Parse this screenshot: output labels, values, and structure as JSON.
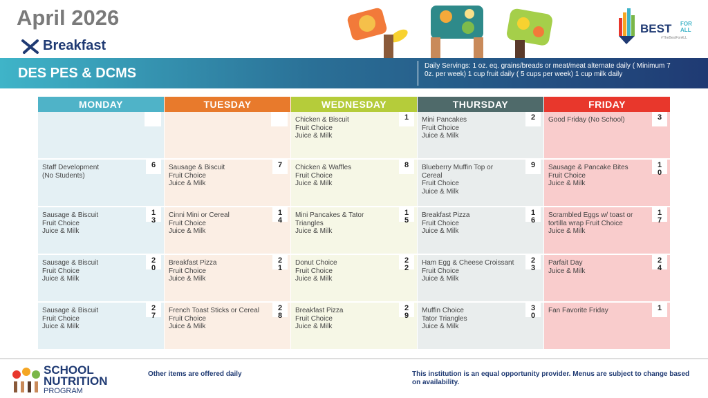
{
  "header": {
    "month": "April 2026",
    "meal": "Breakfast",
    "schools": "DES PES & DCMS",
    "servings": "Daily Servings: 1 oz. eq. grains/breads or meat/meat alternate daily ( Minimum 7 0z. per week)    1 cup fruit daily ( 5 cups per week)     1 cup milk daily",
    "logo": [
      "BEST",
      "FOR",
      "ALL"
    ],
    "logo_tag": "#TheBestForALL"
  },
  "days": [
    "MONDAY",
    "TUESDAY",
    "WEDNESDAY",
    "THURSDAY",
    "FRIDAY"
  ],
  "weeks": [
    [
      null,
      null,
      {
        "date": 1,
        "lines": [
          "Chicken & Biscuit",
          "Fruit Choice",
          "Juice & Milk"
        ]
      },
      {
        "date": 2,
        "lines": [
          "Mini Pancakes",
          "Fruit Choice",
          "Juice & Milk"
        ]
      },
      {
        "date": 3,
        "lines": [
          "Good Friday (No School)"
        ]
      }
    ],
    [
      {
        "date": 6,
        "lines": [
          "Staff Development",
          "(No Students)"
        ]
      },
      {
        "date": 7,
        "lines": [
          "Sausage & Biscuit",
          "Fruit Choice",
          "Juice & Milk"
        ]
      },
      {
        "date": 8,
        "lines": [
          "Chicken & Waffles",
          "Fruit Choice",
          "Juice & Milk"
        ]
      },
      {
        "date": 9,
        "lines": [
          "Blueberry Muffin Top  or",
          "Cereal",
          "Fruit Choice",
          "Juice & Milk"
        ]
      },
      {
        "date": 10,
        "lines": [
          "Sausage & Pancake Bites",
          "Fruit Choice",
          "Juice & Milk"
        ]
      }
    ],
    [
      {
        "date": 13,
        "lines": [
          "Sausage & Biscuit",
          "Fruit Choice",
          "Juice & Milk"
        ]
      },
      {
        "date": 14,
        "lines": [
          "Cinni Mini or Cereal",
          "Fruit Choice",
          "Juice & Milk"
        ]
      },
      {
        "date": 15,
        "lines": [
          "Mini Pancakes & Tator",
          "Triangles",
          "Juice & Milk"
        ]
      },
      {
        "date": 16,
        "lines": [
          "Breakfast Pizza",
          "Fruit Choice",
          "Juice & Milk"
        ]
      },
      {
        "date": 17,
        "lines": [
          "Scrambled Eggs w/ toast or",
          "tortilla wrap Fruit Choice",
          "Juice & Milk"
        ]
      }
    ],
    [
      {
        "date": 20,
        "lines": [
          "Sausage & Biscuit",
          "Fruit Choice",
          "Juice & Milk"
        ]
      },
      {
        "date": 21,
        "lines": [
          "Breakfast Pizza",
          "Fruit Choice",
          "Juice & Milk"
        ]
      },
      {
        "date": 22,
        "lines": [
          "Donut Choice",
          "Fruit Choice",
          "Juice & Milk"
        ]
      },
      {
        "date": 23,
        "lines": [
          "Ham Egg & Cheese Croissant",
          "Fruit Choice",
          "Juice & Milk"
        ]
      },
      {
        "date": 24,
        "lines": [
          "Parfait Day",
          "Juice & Milk"
        ]
      }
    ],
    [
      {
        "date": 27,
        "lines": [
          "Sausage & Biscuit",
          "Fruit Choice",
          "Juice & Milk"
        ]
      },
      {
        "date": 28,
        "lines": [
          "French Toast Sticks or Cereal",
          "Fruit Choice",
          "Juice & Milk"
        ]
      },
      {
        "date": 29,
        "lines": [
          "Breakfast Pizza",
          "Fruit Choice",
          "Juice & Milk"
        ]
      },
      {
        "date": 30,
        "lines": [
          "Muffin Choice",
          "Tator Triangles",
          "Juice & Milk"
        ]
      },
      {
        "date": 1,
        "lines": [
          "Fan Favorite Friday"
        ]
      }
    ]
  ],
  "footer": {
    "logo": [
      "SCHOOL",
      "NUTRITION",
      "PROGRAM"
    ],
    "other_items": "Other items  are offered daily",
    "equal_opportunity": "This institution is an equal opportunity provider. Menus are subject to change based on availability."
  }
}
